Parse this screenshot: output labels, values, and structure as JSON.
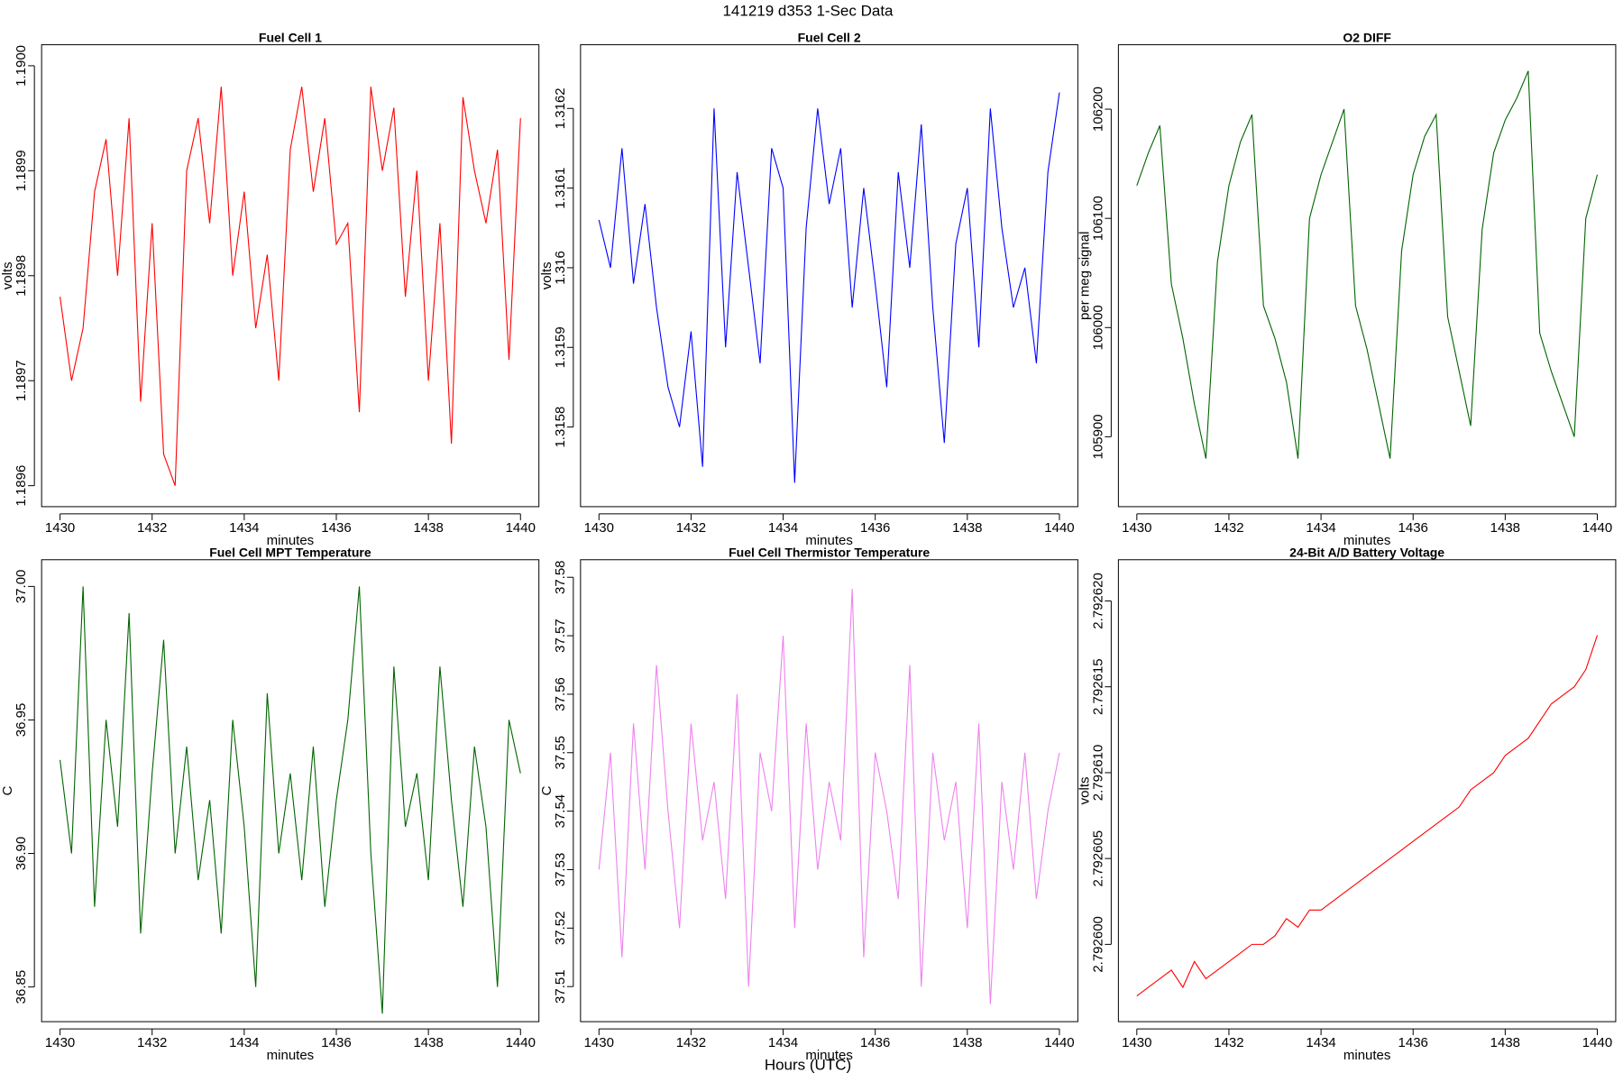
{
  "title": "141219   d353   1-Sec Data",
  "xlabel": "Hours (UTC)",
  "chart_data": [
    {
      "type": "line",
      "title": "Fuel Cell 1",
      "xlabel": "minutes",
      "ylabel": "volts",
      "color": "#ff0000",
      "x": [
        1430,
        1430.25,
        1430.5,
        1430.75,
        1431,
        1431.25,
        1431.5,
        1431.75,
        1432,
        1432.25,
        1432.5,
        1432.75,
        1433,
        1433.25,
        1433.5,
        1433.75,
        1434,
        1434.25,
        1434.5,
        1434.75,
        1435,
        1435.25,
        1435.5,
        1435.75,
        1436,
        1436.25,
        1436.5,
        1436.75,
        1437,
        1437.25,
        1437.5,
        1437.75,
        1438,
        1438.25,
        1438.5,
        1438.75,
        1439,
        1439.25,
        1439.5,
        1439.75,
        1440
      ],
      "values": [
        1.18978,
        1.1897,
        1.18975,
        1.18988,
        1.18993,
        1.1898,
        1.18995,
        1.18968,
        1.18985,
        1.18963,
        1.1896,
        1.1899,
        1.18995,
        1.18985,
        1.18998,
        1.1898,
        1.18988,
        1.18975,
        1.18982,
        1.1897,
        1.18992,
        1.18998,
        1.18988,
        1.18995,
        1.18983,
        1.18985,
        1.18967,
        1.18998,
        1.1899,
        1.18996,
        1.18978,
        1.1899,
        1.1897,
        1.18985,
        1.18964,
        1.18997,
        1.1899,
        1.18985,
        1.18992,
        1.18972,
        1.18995
      ],
      "xlim": [
        1429.6,
        1440.4
      ],
      "xticks": [
        1430,
        1432,
        1434,
        1436,
        1438,
        1440
      ],
      "ylim": [
        1.18958,
        1.19002
      ],
      "yticks": [
        1.1896,
        1.1897,
        1.1898,
        1.1899,
        {
          "value": 1.19,
          "label": "1.1900"
        }
      ]
    },
    {
      "type": "line",
      "title": "Fuel Cell 2",
      "xlabel": "minutes",
      "ylabel": "volts",
      "color": "#0000ff",
      "x": [
        1430,
        1430.25,
        1430.5,
        1430.75,
        1431,
        1431.25,
        1431.5,
        1431.75,
        1432,
        1432.25,
        1432.5,
        1432.75,
        1433,
        1433.25,
        1433.5,
        1433.75,
        1434,
        1434.25,
        1434.5,
        1434.75,
        1435,
        1435.25,
        1435.5,
        1435.75,
        1436,
        1436.25,
        1436.5,
        1436.75,
        1437,
        1437.25,
        1437.5,
        1437.75,
        1438,
        1438.25,
        1438.5,
        1438.75,
        1439,
        1439.25,
        1439.5,
        1439.75,
        1440
      ],
      "values": [
        1.31606,
        1.316,
        1.31615,
        1.31598,
        1.31608,
        1.31595,
        1.31585,
        1.3158,
        1.31592,
        1.31575,
        1.3162,
        1.3159,
        1.31612,
        1.316,
        1.31588,
        1.31615,
        1.3161,
        1.31573,
        1.31605,
        1.3162,
        1.31608,
        1.31615,
        1.31595,
        1.3161,
        1.31598,
        1.31585,
        1.31612,
        1.316,
        1.31618,
        1.31595,
        1.31578,
        1.31603,
        1.3161,
        1.3159,
        1.3162,
        1.31605,
        1.31595,
        1.316,
        1.31588,
        1.31612,
        1.31622
      ],
      "xlim": [
        1429.6,
        1440.4
      ],
      "xticks": [
        1430,
        1432,
        1434,
        1436,
        1438,
        1440
      ],
      "ylim": [
        1.3157,
        1.31628
      ],
      "yticks": [
        1.3158,
        1.3159,
        1.316,
        1.3161,
        1.3162
      ]
    },
    {
      "type": "line",
      "title": "O2 DIFF",
      "xlabel": "minutes",
      "ylabel": "per meg signal",
      "color": "#006400",
      "x": [
        1430,
        1430.25,
        1430.5,
        1430.75,
        1431,
        1431.25,
        1431.5,
        1431.75,
        1432,
        1432.25,
        1432.5,
        1432.75,
        1433,
        1433.25,
        1433.5,
        1433.75,
        1434,
        1434.25,
        1434.5,
        1434.75,
        1435,
        1435.25,
        1435.5,
        1435.75,
        1436,
        1436.25,
        1436.5,
        1436.75,
        1437,
        1437.25,
        1437.5,
        1437.75,
        1438,
        1438.25,
        1438.5,
        1438.75,
        1439,
        1439.25,
        1439.5,
        1439.75,
        1440
      ],
      "values": [
        106130,
        106160,
        106185,
        106040,
        105990,
        105930,
        105880,
        106060,
        106130,
        106170,
        106195,
        106020,
        105990,
        105950,
        105880,
        106100,
        106140,
        106170,
        106200,
        106020,
        105980,
        105930,
        105880,
        106070,
        106140,
        106175,
        106195,
        106010,
        105960,
        105910,
        106090,
        106160,
        106190,
        106210,
        106235,
        105995,
        105960,
        105930,
        105900,
        106100,
        106140
      ],
      "xlim": [
        1429.6,
        1440.4
      ],
      "xticks": [
        1430,
        1432,
        1434,
        1436,
        1438,
        1440
      ],
      "ylim": [
        105836,
        106259
      ],
      "yticks": [
        105900,
        106000,
        106100,
        106200
      ]
    },
    {
      "type": "line",
      "title": "Fuel Cell MPT Temperature",
      "xlabel": "minutes",
      "ylabel": "C",
      "color": "#006400",
      "x": [
        1430,
        1430.25,
        1430.5,
        1430.75,
        1431,
        1431.25,
        1431.5,
        1431.75,
        1432,
        1432.25,
        1432.5,
        1432.75,
        1433,
        1433.25,
        1433.5,
        1433.75,
        1434,
        1434.25,
        1434.5,
        1434.75,
        1435,
        1435.25,
        1435.5,
        1435.75,
        1436,
        1436.25,
        1436.5,
        1436.75,
        1437,
        1437.25,
        1437.5,
        1437.75,
        1438,
        1438.25,
        1438.5,
        1438.75,
        1439,
        1439.25,
        1439.5,
        1439.75,
        1440
      ],
      "values": [
        36.935,
        36.9,
        37,
        36.88,
        36.95,
        36.91,
        36.99,
        36.87,
        36.93,
        36.98,
        36.9,
        36.94,
        36.89,
        36.92,
        36.87,
        36.95,
        36.91,
        36.85,
        36.96,
        36.9,
        36.93,
        36.89,
        36.94,
        36.88,
        36.92,
        36.95,
        37,
        36.9,
        36.84,
        36.97,
        36.91,
        36.93,
        36.89,
        36.97,
        36.92,
        36.88,
        36.94,
        36.91,
        36.85,
        36.95,
        36.93
      ],
      "xlim": [
        1429.6,
        1440.4
      ],
      "xticks": [
        1430,
        1432,
        1434,
        1436,
        1438,
        1440
      ],
      "ylim": [
        36.837,
        37.01
      ],
      "yticks": [
        36.85,
        {
          "value": 36.9,
          "label": "36.90"
        },
        36.95,
        {
          "value": 37,
          "label": "37.00"
        }
      ]
    },
    {
      "type": "line",
      "title": "Fuel Cell Thermistor Temperature",
      "xlabel": "minutes",
      "ylabel": "C",
      "color": "#ee82ee",
      "x": [
        1430,
        1430.25,
        1430.5,
        1430.75,
        1431,
        1431.25,
        1431.5,
        1431.75,
        1432,
        1432.25,
        1432.5,
        1432.75,
        1433,
        1433.25,
        1433.5,
        1433.75,
        1434,
        1434.25,
        1434.5,
        1434.75,
        1435,
        1435.25,
        1435.5,
        1435.75,
        1436,
        1436.25,
        1436.5,
        1436.75,
        1437,
        1437.25,
        1437.5,
        1437.75,
        1438,
        1438.25,
        1438.5,
        1438.75,
        1439,
        1439.25,
        1439.5,
        1439.75,
        1440
      ],
      "values": [
        37.53,
        37.55,
        37.515,
        37.555,
        37.53,
        37.565,
        37.54,
        37.52,
        37.555,
        37.535,
        37.545,
        37.525,
        37.56,
        37.51,
        37.55,
        37.54,
        37.57,
        37.52,
        37.555,
        37.53,
        37.545,
        37.535,
        37.578,
        37.515,
        37.55,
        37.54,
        37.525,
        37.565,
        37.51,
        37.55,
        37.535,
        37.545,
        37.52,
        37.555,
        37.507,
        37.545,
        37.53,
        37.55,
        37.525,
        37.54,
        37.55
      ],
      "xlim": [
        1429.6,
        1440.4
      ],
      "xticks": [
        1430,
        1432,
        1434,
        1436,
        1438,
        1440
      ],
      "ylim": [
        37.504,
        37.583
      ],
      "yticks": [
        37.51,
        37.52,
        37.53,
        37.54,
        37.55,
        37.56,
        37.57,
        37.58
      ]
    },
    {
      "type": "line",
      "title": "24-Bit A/D Battery Voltage",
      "xlabel": "minutes",
      "ylabel": "volts",
      "color": "#ff0000",
      "x": [
        1430,
        1430.25,
        1430.5,
        1430.75,
        1431,
        1431.25,
        1431.5,
        1431.75,
        1432,
        1432.25,
        1432.5,
        1432.75,
        1433,
        1433.25,
        1433.5,
        1433.75,
        1434,
        1434.25,
        1434.5,
        1434.75,
        1435,
        1435.25,
        1435.5,
        1435.75,
        1436,
        1436.25,
        1436.5,
        1436.75,
        1437,
        1437.25,
        1437.5,
        1437.75,
        1438,
        1438.25,
        1438.5,
        1438.75,
        1439,
        1439.25,
        1439.5,
        1439.75,
        1440
      ],
      "values": [
        2.792597,
        2.7925975,
        2.792598,
        2.7925985,
        2.7925975,
        2.792599,
        2.792598,
        2.7925985,
        2.792599,
        2.7925995,
        2.7926,
        2.7926,
        2.7926005,
        2.7926015,
        2.792601,
        2.792602,
        2.792602,
        2.7926025,
        2.792603,
        2.7926035,
        2.792604,
        2.7926045,
        2.792605,
        2.7926055,
        2.792606,
        2.7926065,
        2.792607,
        2.7926075,
        2.792608,
        2.792609,
        2.7926095,
        2.79261,
        2.792611,
        2.7926115,
        2.792612,
        2.792613,
        2.792614,
        2.7926145,
        2.792615,
        2.792616,
        2.792618
      ],
      "xlim": [
        1429.6,
        1440.4
      ],
      "xticks": [
        1430,
        1432,
        1434,
        1436,
        1438,
        1440
      ],
      "ylim": [
        2.7925955,
        2.7926224
      ],
      "yticks": [
        {
          "value": 2.7926,
          "label": "2.792600"
        },
        2.792605,
        {
          "value": 2.79261,
          "label": "2.792610"
        },
        2.792615,
        {
          "value": 2.79262,
          "label": "2.792620"
        }
      ]
    }
  ]
}
